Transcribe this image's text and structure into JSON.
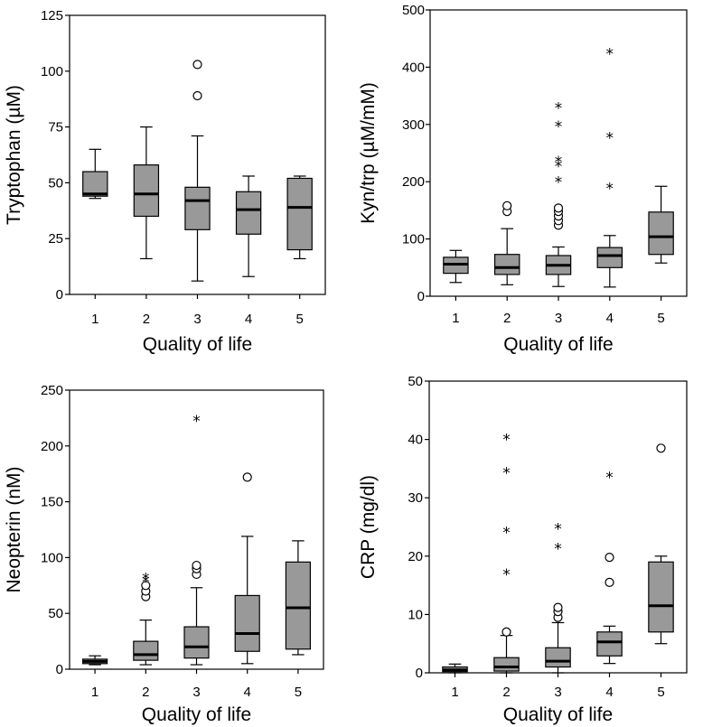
{
  "chart_data": [
    {
      "type": "box",
      "title": "",
      "xlabel": "Quality of life",
      "ylabel": "Tryptophan (µM)",
      "ylim": [
        0,
        125
      ],
      "yticks": [
        0,
        25,
        50,
        75,
        100,
        125
      ],
      "categories": [
        "1",
        "2",
        "3",
        "4",
        "5"
      ],
      "boxes": [
        {
          "min": 43,
          "q1": 44,
          "median": 45,
          "q3": 55,
          "max": 65,
          "outliers": [],
          "extremes": []
        },
        {
          "min": 16,
          "q1": 35,
          "median": 45,
          "q3": 58,
          "max": 75,
          "outliers": [],
          "extremes": []
        },
        {
          "min": 6,
          "q1": 29,
          "median": 42,
          "q3": 48,
          "max": 71,
          "outliers": [
            89,
            103
          ],
          "extremes": []
        },
        {
          "min": 8,
          "q1": 27,
          "median": 38,
          "q3": 46,
          "max": 53,
          "outliers": [],
          "extremes": []
        },
        {
          "min": 16,
          "q1": 20,
          "median": 39,
          "q3": 52,
          "max": 53,
          "outliers": [],
          "extremes": []
        }
      ]
    },
    {
      "type": "box",
      "title": "",
      "xlabel": "Quality of life",
      "ylabel": "Kyn/trp (µM/mM)",
      "ylim": [
        0,
        500
      ],
      "yticks": [
        0,
        100,
        200,
        300,
        400,
        500
      ],
      "categories": [
        "1",
        "2",
        "3",
        "4",
        "5"
      ],
      "boxes": [
        {
          "min": 24,
          "q1": 40,
          "median": 56,
          "q3": 68,
          "max": 80,
          "outliers": [],
          "extremes": []
        },
        {
          "min": 20,
          "q1": 38,
          "median": 50,
          "q3": 73,
          "max": 118,
          "outliers": [
            148,
            158
          ],
          "extremes": []
        },
        {
          "min": 17,
          "q1": 38,
          "median": 54,
          "q3": 71,
          "max": 86,
          "outliers": [
            124,
            132,
            140,
            148,
            154
          ],
          "extremes": [
            203,
            230,
            238,
            300,
            332
          ]
        },
        {
          "min": 16,
          "q1": 50,
          "median": 71,
          "q3": 85,
          "max": 106,
          "outliers": [],
          "extremes": [
            192,
            280,
            427
          ]
        },
        {
          "min": 58,
          "q1": 73,
          "median": 104,
          "q3": 147,
          "max": 192,
          "outliers": [],
          "extremes": []
        }
      ]
    },
    {
      "type": "box",
      "title": "",
      "xlabel": "Quality of life",
      "ylabel": "Neopterin (nM)",
      "ylim": [
        0,
        250
      ],
      "yticks": [
        0,
        50,
        100,
        150,
        200,
        250
      ],
      "categories": [
        "1",
        "2",
        "3",
        "4",
        "5"
      ],
      "boxes": [
        {
          "min": 4,
          "q1": 5,
          "median": 7,
          "q3": 9,
          "max": 12,
          "outliers": [],
          "extremes": []
        },
        {
          "min": 4,
          "q1": 8,
          "median": 13,
          "q3": 25,
          "max": 44,
          "outliers": [
            65,
            70,
            75
          ],
          "extremes": [
            80,
            83
          ]
        },
        {
          "min": 4,
          "q1": 10,
          "median": 20,
          "q3": 38,
          "max": 73,
          "outliers": [
            85,
            90,
            93
          ],
          "extremes": [
            224
          ]
        },
        {
          "min": 5,
          "q1": 16,
          "median": 32,
          "q3": 66,
          "max": 119,
          "outliers": [
            172
          ],
          "extremes": []
        },
        {
          "min": 13,
          "q1": 18,
          "median": 55,
          "q3": 96,
          "max": 115,
          "outliers": [],
          "extremes": []
        }
      ]
    },
    {
      "type": "box",
      "title": "",
      "xlabel": "Quality of life",
      "ylabel": "CRP (mg/dl)",
      "ylim": [
        0,
        50
      ],
      "yticks": [
        0,
        10,
        20,
        30,
        40,
        50
      ],
      "categories": [
        "1",
        "2",
        "3",
        "4",
        "5"
      ],
      "boxes": [
        {
          "min": 0,
          "q1": 0.2,
          "median": 0.5,
          "q3": 1,
          "max": 1.5,
          "outliers": [],
          "extremes": []
        },
        {
          "min": 0,
          "q1": 0.3,
          "median": 1,
          "q3": 2.6,
          "max": 6.4,
          "outliers": [
            7
          ],
          "extremes": [
            17.2,
            24.4,
            34.6,
            40.3
          ]
        },
        {
          "min": 0,
          "q1": 1,
          "median": 2,
          "q3": 4.3,
          "max": 8.6,
          "outliers": [
            9.5,
            10.5,
            11.2
          ],
          "extremes": [
            21.6,
            25
          ]
        },
        {
          "min": 1.6,
          "q1": 2.9,
          "median": 5.3,
          "q3": 7,
          "max": 8,
          "outliers": [
            15.5,
            19.8
          ],
          "extremes": [
            33.8
          ]
        },
        {
          "min": 5,
          "q1": 7,
          "median": 11.5,
          "q3": 19,
          "max": 20,
          "outliers": [
            38.5
          ],
          "extremes": []
        }
      ]
    }
  ]
}
